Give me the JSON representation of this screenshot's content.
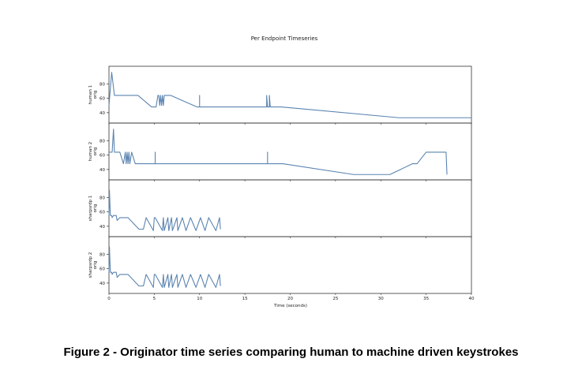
{
  "figure": {
    "caption": "Figure 2 - Originator time series comparing human to machine driven keystrokes"
  },
  "chart_data": {
    "type": "line",
    "title": "Per Endpoint Timeseries",
    "xlabel": "Time (seconds)",
    "xlim": [
      0,
      40
    ],
    "x_ticks": [
      0,
      5,
      10,
      15,
      20,
      25,
      30,
      35,
      40
    ],
    "ylim": [
      30,
      100
    ],
    "y_ticks": [
      40,
      60,
      80
    ],
    "line_color": "#5b84b1",
    "grid": false,
    "panels": [
      {
        "ylabel": [
          "human 1",
          "orig"
        ],
        "x": [
          0,
          0.3,
          0.6,
          3.2,
          4.7,
          5.2,
          5.4,
          5.5,
          5.6,
          5.7,
          5.8,
          5.9,
          6.0,
          6.1,
          6.2,
          6.8,
          9.7,
          10.0,
          10.0,
          10.0,
          17.3,
          17.4,
          17.4,
          17.5,
          17.6,
          17.7,
          17.7,
          17.8,
          19.0,
          32.0,
          40.0
        ],
        "y": [
          50,
          96,
          64,
          64,
          48,
          48,
          64,
          64,
          50,
          64,
          50,
          64,
          50,
          64,
          64,
          64,
          48,
          48,
          64,
          48,
          48,
          48,
          64,
          48,
          48,
          48,
          64,
          48,
          48,
          33,
          33
        ]
      },
      {
        "ylabel": [
          "human 2",
          "orig"
        ],
        "x": [
          0,
          0.35,
          0.5,
          0.6,
          1.2,
          1.6,
          1.8,
          1.9,
          2.0,
          2.1,
          2.2,
          2.3,
          2.5,
          2.9,
          5.1,
          5.1,
          5.1,
          17.5,
          17.5,
          17.5,
          19.2,
          27.0,
          31.0,
          33.5,
          34.0,
          35.0,
          37.2,
          37.3
        ],
        "y": [
          64,
          64,
          96,
          64,
          64,
          48,
          64,
          48,
          64,
          48,
          64,
          48,
          64,
          48,
          48,
          64,
          48,
          48,
          64,
          48,
          48,
          33,
          33,
          48,
          48,
          64,
          64,
          33
        ]
      },
      {
        "ylabel": [
          "sharpsrdp 1",
          "orig"
        ],
        "x": [
          0,
          0.05,
          0.15,
          0.3,
          0.35,
          0.5,
          0.8,
          0.9,
          1.2,
          1.5,
          2.1,
          3.3,
          3.8,
          4.1,
          4.9,
          5.0,
          5.1,
          5.9,
          6.0,
          6.1,
          6.5,
          6.6,
          6.9,
          7.0,
          7.5,
          7.6,
          8.1,
          8.5,
          9.0,
          9.6,
          10.1,
          10.6,
          11.0,
          11.8,
          12.2,
          12.3
        ],
        "y": [
          55,
          90,
          55,
          55,
          52,
          55,
          55,
          48,
          52,
          52,
          52,
          36,
          36,
          52,
          34,
          52,
          52,
          34,
          52,
          34,
          52,
          34,
          52,
          34,
          52,
          34,
          52,
          34,
          52,
          34,
          52,
          34,
          52,
          34,
          52,
          36
        ]
      },
      {
        "ylabel": [
          "sharpsrdp 2",
          "orig"
        ],
        "x": [
          0,
          0.05,
          0.15,
          0.3,
          0.35,
          0.5,
          0.8,
          0.9,
          1.2,
          1.5,
          2.1,
          3.3,
          3.8,
          4.1,
          4.9,
          5.0,
          5.1,
          5.9,
          6.0,
          6.1,
          6.5,
          6.6,
          6.9,
          7.0,
          7.5,
          7.6,
          8.1,
          8.5,
          9.0,
          9.6,
          10.1,
          10.6,
          11.0,
          11.8,
          12.2,
          12.3
        ],
        "y": [
          55,
          90,
          55,
          55,
          52,
          55,
          55,
          48,
          52,
          52,
          52,
          36,
          36,
          52,
          34,
          52,
          52,
          34,
          52,
          34,
          52,
          34,
          52,
          34,
          52,
          34,
          52,
          34,
          52,
          34,
          52,
          34,
          52,
          34,
          52,
          36
        ]
      }
    ]
  }
}
